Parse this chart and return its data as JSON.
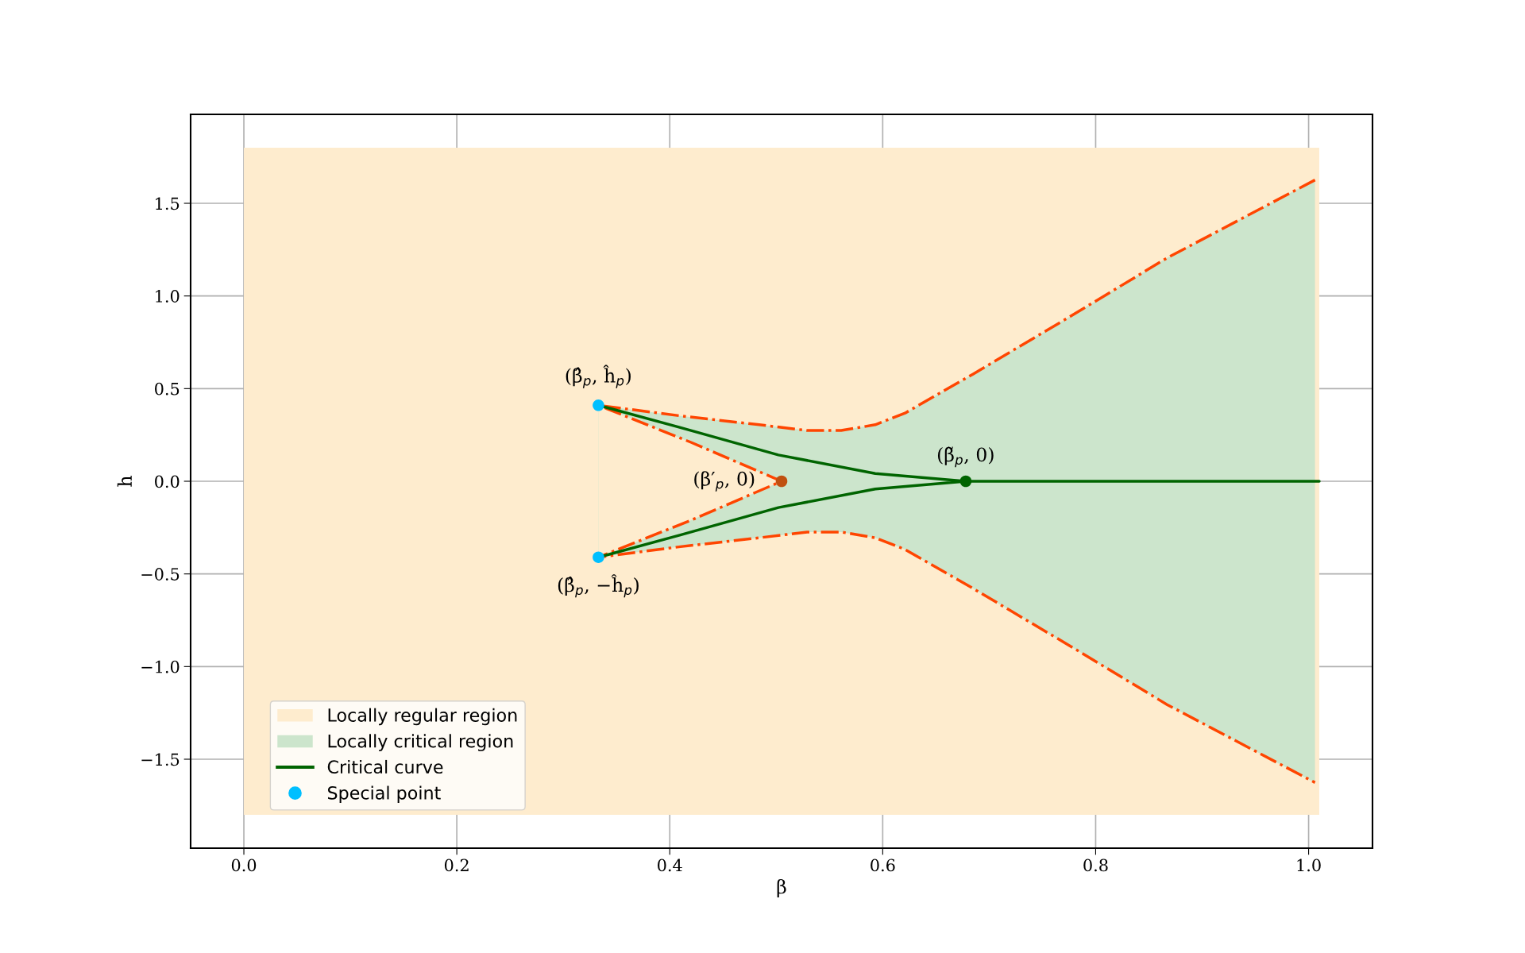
{
  "chart_data": {
    "type": "line",
    "xlabel": "β",
    "ylabel": "h",
    "xlim": [
      -0.05,
      1.06
    ],
    "ylim": [
      -1.98,
      1.98
    ],
    "xticks": [
      {
        "value": 0,
        "label": "0.0"
      },
      0.2,
      0.4,
      0.6,
      0.8,
      {
        "value": 1,
        "label": "1.0"
      }
    ],
    "yticks": [
      {
        "value": -1.5,
        "label": "−1.5"
      },
      {
        "value": -1,
        "label": "−1.0"
      },
      {
        "value": -0.5,
        "label": "−0.5"
      },
      {
        "value": 0,
        "label": "0.0"
      },
      0.5,
      {
        "value": 1,
        "label": "1.0"
      },
      1.5
    ],
    "grid": true,
    "legend": "bottom left",
    "series": [
      {
        "type": "area",
        "name": "Locally regular region",
        "color": "#feecce",
        "x": [
          0,
          1.01
        ],
        "values": [
          1.8,
          1.8
        ]
      },
      {
        "type": "area",
        "color": "#feecce",
        "x": [
          0,
          1.01
        ],
        "values": [
          -1.8,
          -1.8
        ]
      },
      {
        "type": "area",
        "name": "Locally critical region",
        "color": "#cce5cc",
        "x": [
          0.333,
          0.41,
          0.484,
          0.529,
          0.561,
          0.593,
          0.621,
          0.685,
          0.776,
          0.867,
          1.006
        ],
        "values": [
          0.41,
          0.353,
          0.305,
          0.274,
          0.274,
          0.305,
          0.368,
          0.579,
          0.889,
          1.205,
          1.626
        ]
      },
      {
        "type": "area",
        "color": "#cce5cc",
        "x": [
          0.333,
          0.41,
          0.484,
          0.529,
          0.561,
          0.593,
          0.621,
          0.685,
          0.776,
          0.867,
          1.006
        ],
        "values": [
          -0.41,
          -0.353,
          -0.305,
          -0.274,
          -0.274,
          -0.305,
          -0.368,
          -0.579,
          -0.889,
          -1.205,
          -1.626
        ]
      },
      {
        "type": "area",
        "color": "#feecce",
        "x": [
          0.333,
          0.42,
          0.505
        ],
        "values": [
          0.41,
          0.21,
          0
        ]
      },
      {
        "type": "area",
        "color": "#feecce",
        "x": [
          0.333,
          0.42,
          0.505
        ],
        "values": [
          -0.41,
          -0.21,
          0
        ]
      },
      {
        "color": "#ff4500",
        "line_style": "dashdot",
        "x": [
          1.006,
          0.867,
          0.776,
          0.685,
          0.621,
          0.593,
          0.561,
          0.529,
          0.484,
          0.41,
          0.333,
          0.42,
          0.505,
          0.42,
          0.333,
          0.41,
          0.484,
          0.529,
          0.561,
          0.593,
          0.621,
          0.685,
          0.776,
          0.867,
          1.006
        ],
        "values": [
          1.626,
          1.205,
          0.889,
          0.579,
          0.368,
          0.305,
          0.274,
          0.274,
          0.305,
          0.353,
          0.41,
          0.21,
          0,
          -0.21,
          -0.41,
          -0.353,
          -0.305,
          -0.274,
          -0.274,
          -0.305,
          -0.368,
          -0.579,
          -0.889,
          -1.205,
          -1.626
        ]
      },
      {
        "name": "Critical curve",
        "color": "#006400",
        "line_style": "solid",
        "x": [
          0.333,
          0.41,
          0.502,
          0.593,
          0.678,
          1.01,
          0.678,
          0.593,
          0.502,
          0.41,
          0.333
        ],
        "values": [
          0.41,
          0.29,
          0.142,
          0.042,
          0,
          0,
          0,
          -0.042,
          -0.142,
          -0.29,
          -0.41
        ]
      },
      {
        "type": "scatter",
        "name": "Special point",
        "color": "#00bfff",
        "x": [
          0.333,
          0.333
        ],
        "values": [
          0.41,
          -0.41
        ]
      },
      {
        "type": "scatter",
        "color": "#c05010",
        "x": [
          0.505
        ],
        "values": [
          0
        ]
      },
      {
        "type": "scatter",
        "color": "#006400",
        "x": [
          0.678
        ],
        "values": [
          0
        ]
      }
    ],
    "annotations": [
      {
        "text": "(β̂$_{p}$, ĥ$_{p}$)",
        "x": 0.333,
        "y": 0.41
      },
      {
        "text": "(β̂$_{p}$, −ĥ$_{p}$)",
        "x": 0.333,
        "y": -0.41
      },
      {
        "text": "(β′$_{p}$, 0)",
        "x": 0.505,
        "y": 0
      },
      {
        "text": "(β̃$_{p}$, 0)",
        "x": 0.678,
        "y": 0
      }
    ]
  }
}
